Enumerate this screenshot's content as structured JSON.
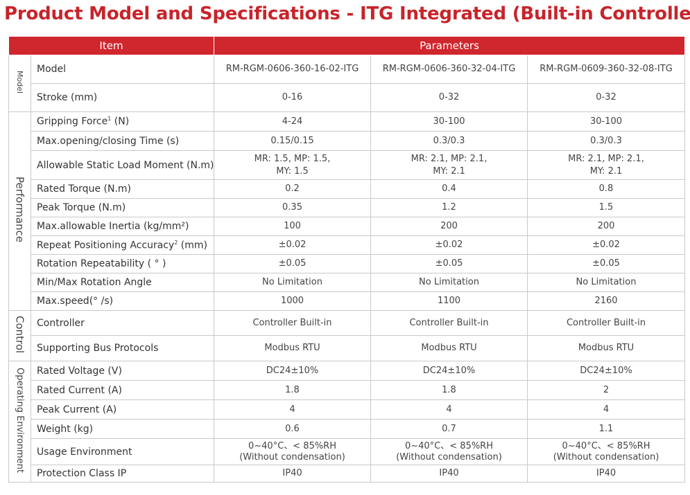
{
  "page": {
    "title": "Product Model and Specifications - ITG Integrated (Built-in Controller)"
  },
  "header": {
    "item": "Item",
    "parameters": "Parameters"
  },
  "categories": {
    "model": "Model",
    "performance": "Performance",
    "control": "Control",
    "operating": "Operating Environment"
  },
  "rows": [
    {
      "label": "Model",
      "values": [
        "RM-RGM-0606-360-16-02-ITG",
        "RM-RGM-0606-360-32-04-ITG",
        "RM-RGM-0609-360-32-08-ITG"
      ]
    },
    {
      "label": "Stroke (mm)",
      "values": [
        "0-16",
        "0-32",
        "0-32"
      ]
    },
    {
      "label": "Gripping Force",
      "sup": "1",
      "label_suffix": " (N)",
      "values": [
        "4-24",
        "30-100",
        "30-100"
      ]
    },
    {
      "label": "Max.opening/closing Time (s)",
      "values": [
        "0.15/0.15",
        "0.3/0.3",
        "0.3/0.3"
      ]
    },
    {
      "label": "Allowable Static Load Moment (N.m)",
      "values": [
        {
          "l1": "MR: 1.5, MP: 1.5,",
          "l2": "MY: 1.5"
        },
        {
          "l1": "MR: 2.1, MP: 2.1,",
          "l2": "MY: 2.1"
        },
        {
          "l1": "MR: 2.1, MP: 2.1,",
          "l2": "MY: 2.1"
        }
      ]
    },
    {
      "label": "Rated Torque (N.m)",
      "values": [
        "0.2",
        "0.4",
        "0.8"
      ]
    },
    {
      "label": "Peak Torque (N.m)",
      "values": [
        "0.35",
        "1.2",
        "1.5"
      ]
    },
    {
      "label": "Max.allowable Inertia (kg/mm²)",
      "values": [
        "100",
        "200",
        "200"
      ]
    },
    {
      "label": "Repeat Positioning Accuracy",
      "sup": "2",
      "label_suffix": " (mm)",
      "values": [
        "±0.02",
        "±0.02",
        "±0.02"
      ]
    },
    {
      "label": "Rotation Repeatability ( ° )",
      "values": [
        "±0.05",
        "±0.05",
        "±0.05"
      ]
    },
    {
      "label": "Min/Max Rotation Angle",
      "values": [
        "No Limitation",
        "No Limitation",
        "No Limitation"
      ]
    },
    {
      "label": "Max.speed(° /s)",
      "values": [
        "1000",
        "1100",
        "2160"
      ]
    },
    {
      "label": "Controller",
      "values": [
        "Controller Built-in",
        "Controller Built-in",
        "Controller Built-in"
      ]
    },
    {
      "label": "Supporting Bus Protocols",
      "values": [
        "Modbus RTU",
        "Modbus RTU",
        "Modbus RTU"
      ]
    },
    {
      "label": "Rated Voltage (V)",
      "values": [
        "DC24±10%",
        "DC24±10%",
        "DC24±10%"
      ]
    },
    {
      "label": "Rated Current (A)",
      "values": [
        "1.8",
        "1.8",
        "2"
      ]
    },
    {
      "label": "Peak Current (A)",
      "values": [
        "4",
        "4",
        "4"
      ]
    },
    {
      "label": "Weight (kg)",
      "values": [
        "0.6",
        "0.7",
        "1.1"
      ]
    },
    {
      "label": "Usage Environment",
      "values": [
        {
          "l1": "0~40°C、< 85%RH",
          "l2": "(Without condensation)"
        },
        {
          "l1": "0~40°C、< 85%RH",
          "l2": "(Without condensation)"
        },
        {
          "l1": "0~40°C、< 85%RH",
          "l2": "(Without condensation)"
        }
      ]
    },
    {
      "label": "Protection Class IP",
      "values": [
        "IP40",
        "IP40",
        "IP40"
      ]
    }
  ]
}
